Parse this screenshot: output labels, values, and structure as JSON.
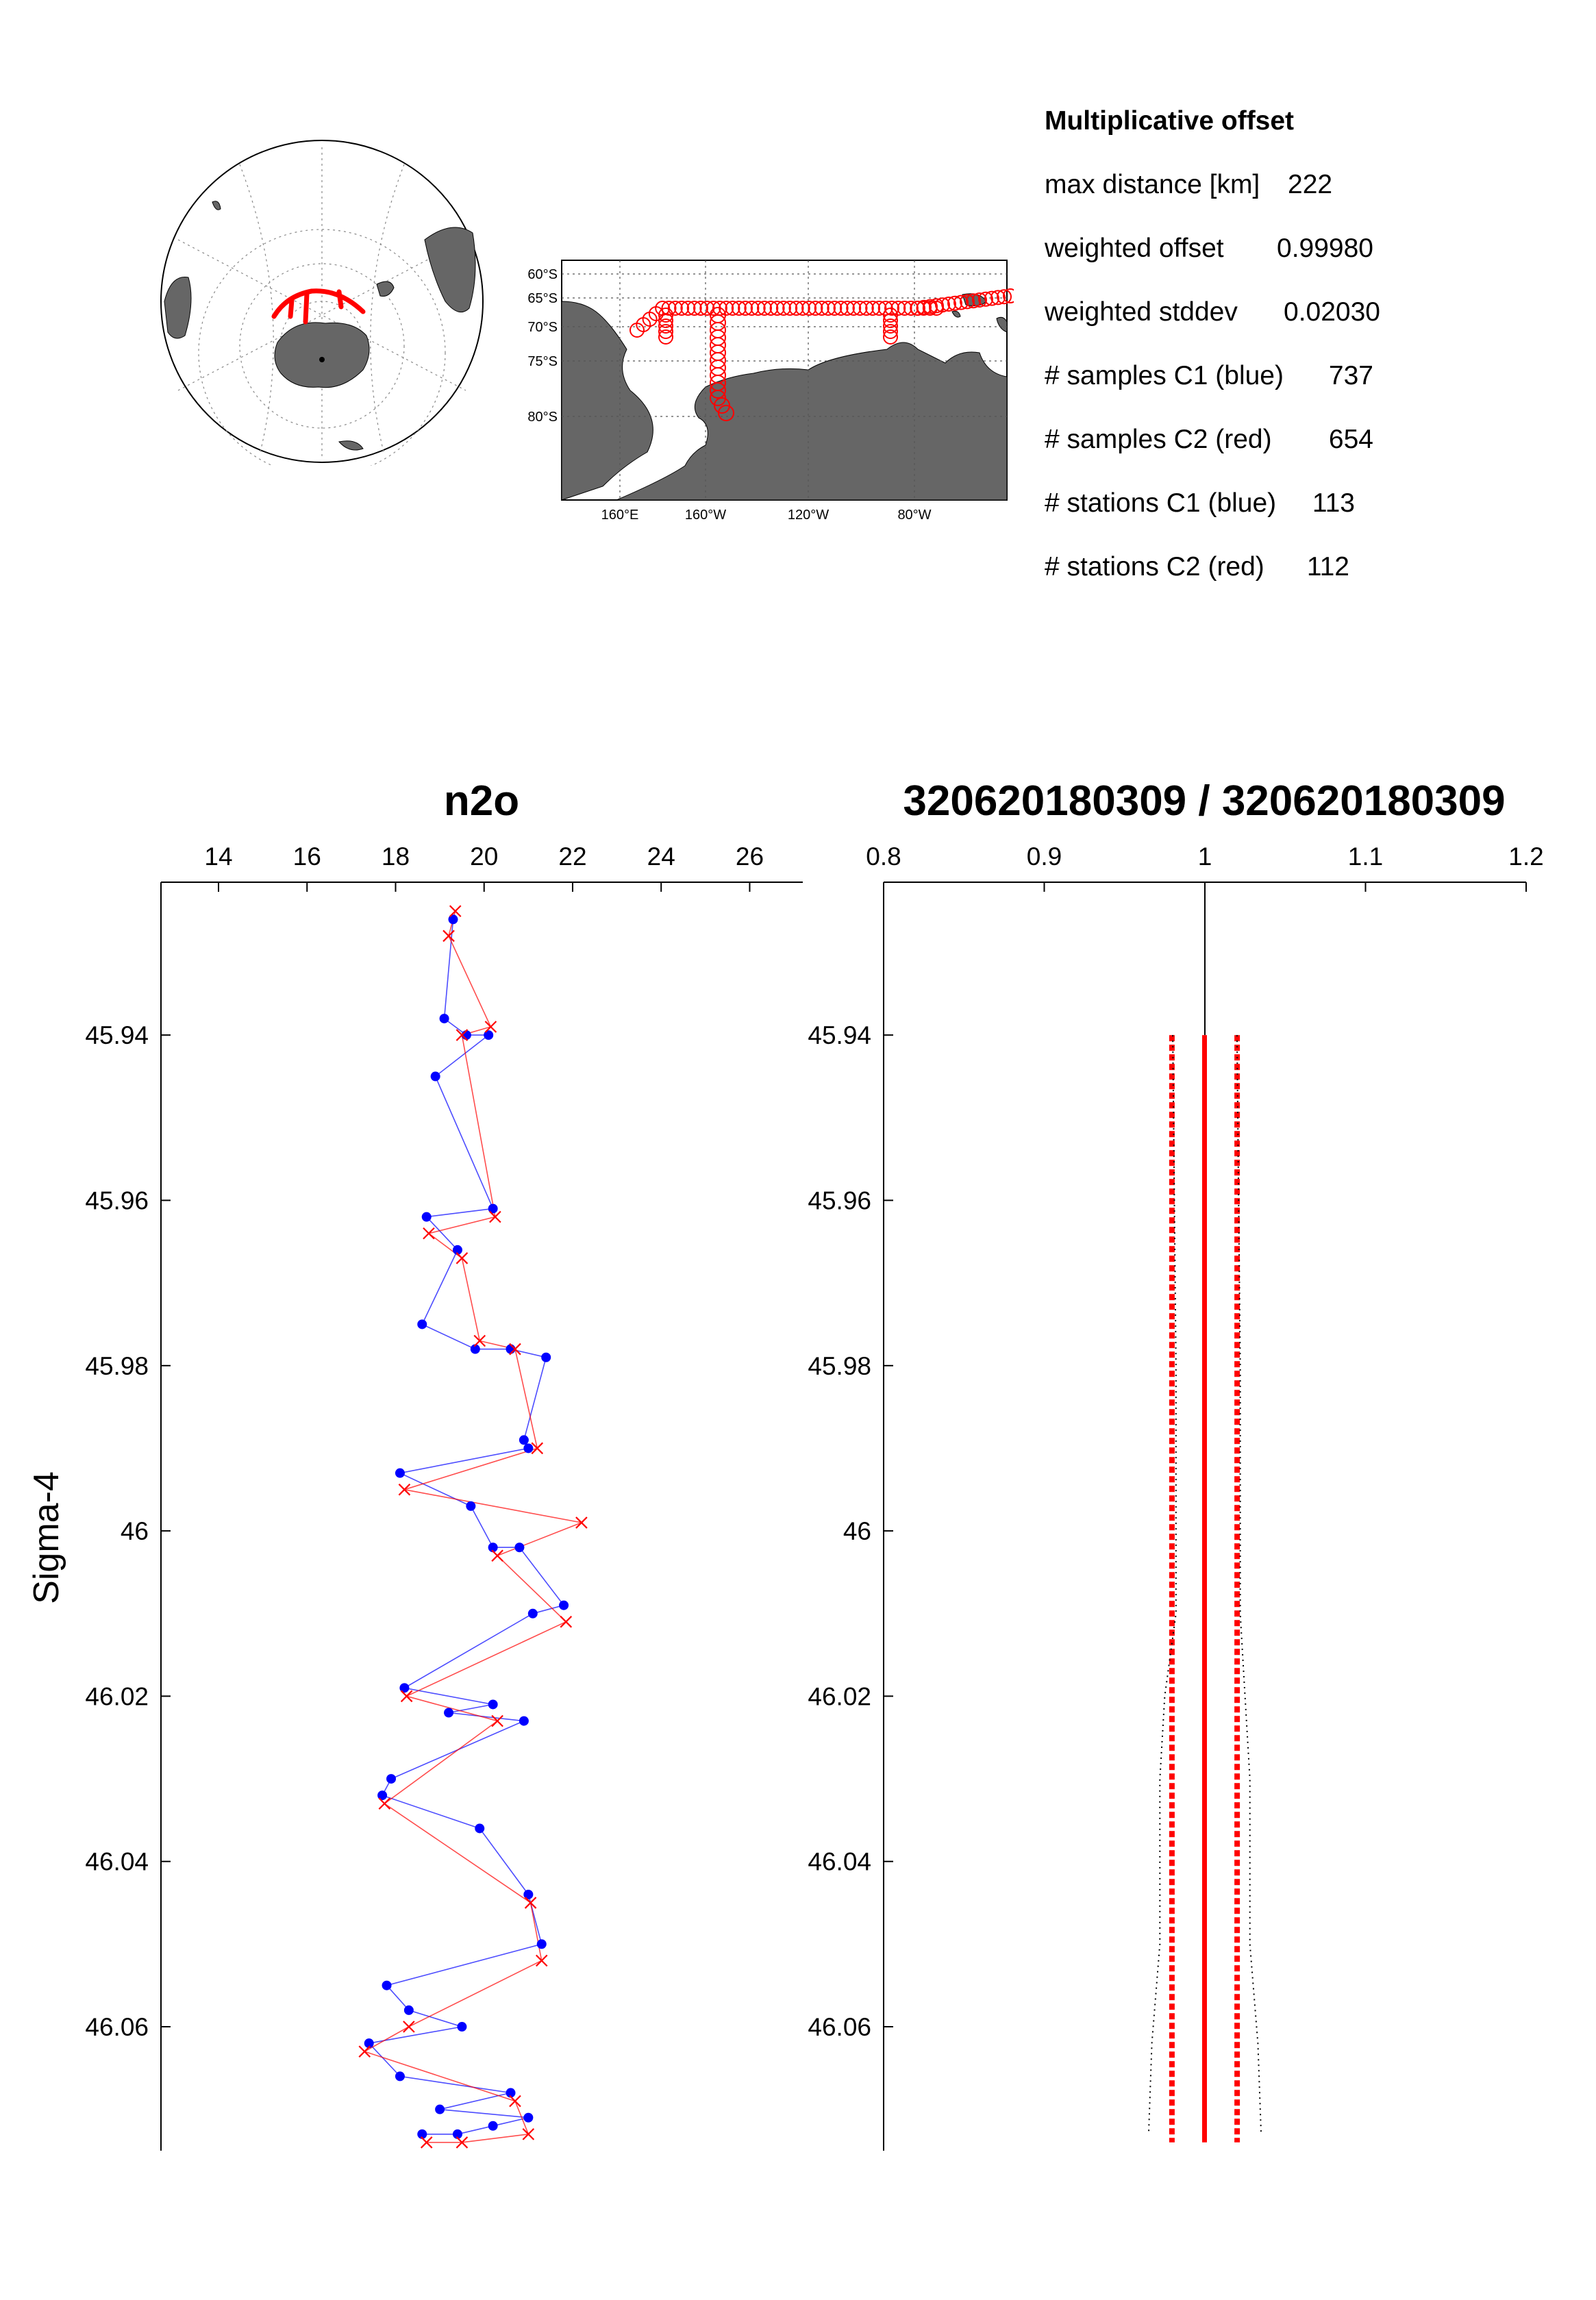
{
  "stats": {
    "title": "Multiplicative offset",
    "rows": [
      {
        "label": "max distance [km]",
        "value": "222"
      },
      {
        "label": "weighted offset",
        "value": "0.99980"
      },
      {
        "label": "weighted stddev",
        "value": "0.02030"
      },
      {
        "label": "# samples C1 (blue)",
        "value": "737"
      },
      {
        "label": "# samples C2 (red)",
        "value": "654"
      },
      {
        "label": "# stations C1 (blue)",
        "value": "113"
      },
      {
        "label": "# stations C2 (red)",
        "value": "112"
      }
    ]
  },
  "map": {
    "lat_labels": [
      "60°S",
      "65°S",
      "70°S",
      "75°S",
      "80°S"
    ],
    "lon_labels": [
      "160°E",
      "160°W",
      "120°W",
      "80°W"
    ],
    "colors": {
      "land": "#666666",
      "track": "#ff0000"
    }
  },
  "chart_data": [
    {
      "type": "scatter",
      "title": "n2o",
      "xlabel": "",
      "ylabel": "Sigma-4",
      "xlim": [
        12.7,
        27.2
      ],
      "ylim": [
        45.9215,
        46.075
      ],
      "y_inverted": true,
      "xticks": [
        "14",
        "16",
        "18",
        "20",
        "22",
        "24",
        "26"
      ],
      "yticks": [
        "45.94",
        "45.96",
        "45.98",
        "46",
        "46.02",
        "46.04",
        "46.06"
      ],
      "series": [
        {
          "color": "#0000ff",
          "marker": "dot",
          "points": [
            [
              19.3,
              45.926
            ],
            [
              19.1,
              45.938
            ],
            [
              18.9,
              45.945
            ],
            [
              19.6,
              45.94
            ],
            [
              20.1,
              45.94
            ],
            [
              18.7,
              45.962
            ],
            [
              19.4,
              45.966
            ],
            [
              20.2,
              45.961
            ],
            [
              18.6,
              45.975
            ],
            [
              19.8,
              45.978
            ],
            [
              20.6,
              45.978
            ],
            [
              21.4,
              45.979
            ],
            [
              20.9,
              45.989
            ],
            [
              21.0,
              45.99
            ],
            [
              18.1,
              45.993
            ],
            [
              19.7,
              45.997
            ],
            [
              20.2,
              46.002
            ],
            [
              20.8,
              46.002
            ],
            [
              21.8,
              46.009
            ],
            [
              21.1,
              46.01
            ],
            [
              18.2,
              46.019
            ],
            [
              19.2,
              46.022
            ],
            [
              20.2,
              46.021
            ],
            [
              20.9,
              46.023
            ],
            [
              17.7,
              46.032
            ],
            [
              17.9,
              46.03
            ],
            [
              19.9,
              46.036
            ],
            [
              21.0,
              46.044
            ],
            [
              21.3,
              46.05
            ],
            [
              17.8,
              46.055
            ],
            [
              18.3,
              46.058
            ],
            [
              19.5,
              46.06
            ],
            [
              17.4,
              46.062
            ],
            [
              18.1,
              46.066
            ],
            [
              20.6,
              46.068
            ],
            [
              19.0,
              46.07
            ],
            [
              21.0,
              46.071
            ],
            [
              19.4,
              46.073
            ],
            [
              20.2,
              46.072
            ],
            [
              18.6,
              46.073
            ]
          ]
        },
        {
          "color": "#ff0000",
          "marker": "x",
          "points": [
            [
              19.35,
              45.925
            ],
            [
              19.2,
              45.928
            ],
            [
              19.5,
              45.94
            ],
            [
              20.15,
              45.939
            ],
            [
              18.75,
              45.964
            ],
            [
              20.25,
              45.962
            ],
            [
              19.5,
              45.967
            ],
            [
              19.9,
              45.977
            ],
            [
              20.7,
              45.978
            ],
            [
              21.2,
              45.99
            ],
            [
              22.2,
              45.999
            ],
            [
              18.2,
              45.995
            ],
            [
              20.3,
              46.003
            ],
            [
              21.85,
              46.011
            ],
            [
              18.25,
              46.02
            ],
            [
              20.3,
              46.023
            ],
            [
              17.75,
              46.033
            ],
            [
              21.05,
              46.045
            ],
            [
              21.3,
              46.052
            ],
            [
              18.3,
              46.06
            ],
            [
              17.3,
              46.063
            ],
            [
              20.7,
              46.069
            ],
            [
              21.0,
              46.073
            ],
            [
              19.5,
              46.074
            ],
            [
              18.7,
              46.074
            ]
          ]
        }
      ]
    },
    {
      "type": "line",
      "title": "320620180309 / 320620180309",
      "xlabel": "",
      "ylabel": "",
      "xlim": [
        0.8,
        1.2
      ],
      "ylim": [
        45.9215,
        46.075
      ],
      "y_inverted": true,
      "xticks": [
        "0.8",
        "0.9",
        "1",
        "1.1",
        "1.2"
      ],
      "yticks": [
        "45.94",
        "45.96",
        "45.98",
        "46",
        "46.02",
        "46.04",
        "46.06"
      ],
      "series": [
        {
          "color": "#000000",
          "style": "solid",
          "x": [
            1.0,
            1.0
          ],
          "y": [
            45.9215,
            45.94
          ]
        },
        {
          "color": "#ff0000",
          "style": "solid",
          "x": [
            0.9998,
            0.9998
          ],
          "y": [
            45.94,
            46.074
          ]
        },
        {
          "color": "#ff0000",
          "style": "dotted",
          "x": [
            0.9795,
            0.9795
          ],
          "y": [
            45.94,
            46.074
          ]
        },
        {
          "color": "#ff0000",
          "style": "dotted",
          "x": [
            1.0201,
            1.0201
          ],
          "y": [
            45.94,
            46.074
          ]
        },
        {
          "color": "#000000",
          "style": "thin-dotted",
          "x": [
            0.98,
            0.982,
            0.982,
            0.975,
            0.972,
            0.972,
            0.967,
            0.965
          ],
          "y": [
            45.94,
            45.98,
            46.01,
            46.02,
            46.03,
            46.05,
            46.062,
            46.073
          ]
        },
        {
          "color": "#000000",
          "style": "thin-dotted",
          "x": [
            1.02,
            1.022,
            1.022,
            1.025,
            1.028,
            1.028,
            1.033,
            1.035
          ],
          "y": [
            45.94,
            45.98,
            46.01,
            46.02,
            46.03,
            46.05,
            46.062,
            46.073
          ]
        }
      ]
    }
  ]
}
